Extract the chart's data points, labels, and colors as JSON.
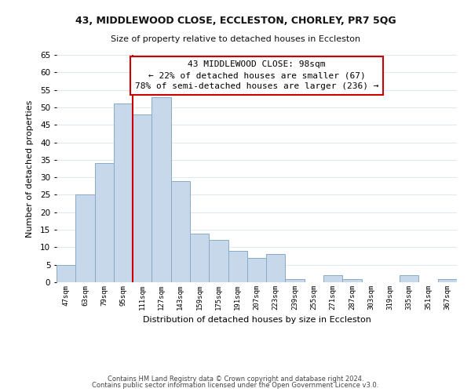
{
  "title": "43, MIDDLEWOOD CLOSE, ECCLESTON, CHORLEY, PR7 5QG",
  "subtitle": "Size of property relative to detached houses in Eccleston",
  "xlabel": "Distribution of detached houses by size in Eccleston",
  "ylabel": "Number of detached properties",
  "bar_color": "#c8d8eb",
  "bar_edge_color": "#88aac8",
  "categories": [
    "47sqm",
    "63sqm",
    "79sqm",
    "95sqm",
    "111sqm",
    "127sqm",
    "143sqm",
    "159sqm",
    "175sqm",
    "191sqm",
    "207sqm",
    "223sqm",
    "239sqm",
    "255sqm",
    "271sqm",
    "287sqm",
    "303sqm",
    "319sqm",
    "335sqm",
    "351sqm",
    "367sqm"
  ],
  "values": [
    5,
    25,
    34,
    51,
    48,
    53,
    29,
    14,
    12,
    9,
    7,
    8,
    1,
    0,
    2,
    1,
    0,
    0,
    2,
    0,
    1
  ],
  "ylim": [
    0,
    65
  ],
  "yticks": [
    0,
    5,
    10,
    15,
    20,
    25,
    30,
    35,
    40,
    45,
    50,
    55,
    60,
    65
  ],
  "property_line_color": "#cc0000",
  "annotation_title": "43 MIDDLEWOOD CLOSE: 98sqm",
  "annotation_line1": "← 22% of detached houses are smaller (67)",
  "annotation_line2": "78% of semi-detached houses are larger (236) →",
  "annotation_box_color": "#ffffff",
  "annotation_box_edge": "#cc0000",
  "footer1": "Contains HM Land Registry data © Crown copyright and database right 2024.",
  "footer2": "Contains public sector information licensed under the Open Government Licence v3.0.",
  "background_color": "#ffffff",
  "grid_color": "#dde8f0"
}
